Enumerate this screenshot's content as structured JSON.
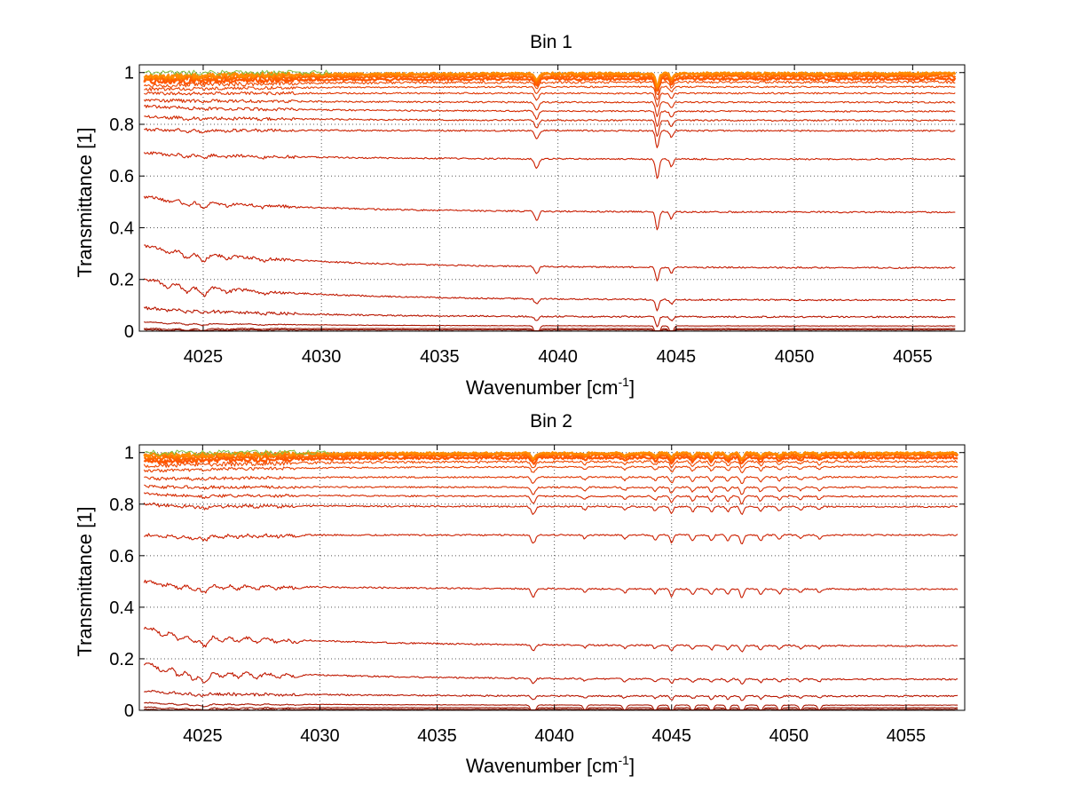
{
  "chart_data": [
    {
      "type": "line",
      "title": "Bin 1",
      "xlabel": "Wavenumber [cm",
      "xlabel_sup": "-1",
      "xlabel_end": "]",
      "ylabel": "Transmittance [1]",
      "xlim": [
        4022.3,
        4057.2
      ],
      "ylim": [
        0,
        1.03
      ],
      "xticks": [
        4025,
        4030,
        4035,
        4040,
        4045,
        4050,
        4055
      ],
      "yticks": [
        0,
        0.2,
        0.4,
        0.6,
        0.8,
        1
      ],
      "ytick_labels": [
        "0",
        "0.2",
        "0.4",
        "0.6",
        "0.8",
        "1"
      ],
      "grid": true,
      "x_start": 4022.5,
      "x_end": 4056.8,
      "series": [
        {
          "level": 0.997,
          "start": 0.985,
          "color": "#ff8c00"
        },
        {
          "level": 0.993,
          "start": 0.98,
          "color": "#ff7400"
        },
        {
          "level": 0.985,
          "start": 0.975,
          "color": "#ff6400"
        },
        {
          "level": 0.975,
          "start": 0.965,
          "color": "#ff5500"
        },
        {
          "level": 0.963,
          "start": 0.95,
          "color": "#f04a00"
        },
        {
          "level": 0.945,
          "start": 0.935,
          "color": "#e84000"
        },
        {
          "level": 0.92,
          "start": 0.92,
          "color": "#e03500"
        },
        {
          "level": 0.885,
          "start": 0.895,
          "color": "#d83000"
        },
        {
          "level": 0.85,
          "start": 0.87,
          "color": "#d52a00"
        },
        {
          "level": 0.815,
          "start": 0.83,
          "color": "#d02800"
        },
        {
          "level": 0.775,
          "start": 0.78,
          "color": "#cc2200"
        },
        {
          "level": 0.665,
          "start": 0.69,
          "color": "#cc2000"
        },
        {
          "level": 0.46,
          "start": 0.52,
          "color": "#c81c00"
        },
        {
          "level": 0.245,
          "start": 0.33,
          "color": "#c41a00"
        },
        {
          "level": 0.12,
          "start": 0.2,
          "color": "#c01800"
        },
        {
          "level": 0.055,
          "start": 0.09,
          "color": "#b81600"
        },
        {
          "level": 0.02,
          "start": 0.035,
          "color": "#a81400"
        },
        {
          "level": 0.01,
          "start": 0.01,
          "color": "#951200"
        },
        {
          "level": 0.005,
          "start": 0.005,
          "color": "#801000"
        }
      ],
      "absorption_lines": [
        {
          "x": 4039.1,
          "depth": 0.5,
          "width": 0.12
        },
        {
          "x": 4044.2,
          "depth": 1.0,
          "width": 0.1
        },
        {
          "x": 4044.8,
          "depth": 0.4,
          "width": 0.1
        }
      ],
      "low_x_wiggles": [
        {
          "x": 4023.5,
          "depth": 0.15
        },
        {
          "x": 4024.3,
          "depth": 0.25
        },
        {
          "x": 4025.0,
          "depth": 0.3
        },
        {
          "x": 4026.0,
          "depth": 0.12
        },
        {
          "x": 4027.5,
          "depth": 0.1
        }
      ]
    },
    {
      "type": "line",
      "title": "Bin 2",
      "xlabel": "Wavenumber [cm",
      "xlabel_sup": "-1",
      "xlabel_end": "]",
      "ylabel": "Transmittance [1]",
      "xlim": [
        4022.3,
        4057.5
      ],
      "ylim": [
        0,
        1.03
      ],
      "xticks": [
        4025,
        4030,
        4035,
        4040,
        4045,
        4050,
        4055
      ],
      "yticks": [
        0,
        0.2,
        0.4,
        0.6,
        0.8,
        1
      ],
      "ytick_labels": [
        "0",
        "0.2",
        "0.4",
        "0.6",
        "0.8",
        "1"
      ],
      "grid": true,
      "x_start": 4022.5,
      "x_end": 4057.2,
      "series": [
        {
          "level": 0.998,
          "start": 0.99,
          "color": "#ff8c00"
        },
        {
          "level": 0.995,
          "start": 0.985,
          "color": "#ff7400"
        },
        {
          "level": 0.99,
          "start": 0.975,
          "color": "#ff6400"
        },
        {
          "level": 0.98,
          "start": 0.965,
          "color": "#ff5500"
        },
        {
          "level": 0.965,
          "start": 0.95,
          "color": "#f04a00"
        },
        {
          "level": 0.945,
          "start": 0.93,
          "color": "#e84000"
        },
        {
          "level": 0.905,
          "start": 0.9,
          "color": "#e03500"
        },
        {
          "level": 0.865,
          "start": 0.87,
          "color": "#d83000"
        },
        {
          "level": 0.83,
          "start": 0.84,
          "color": "#d52a00"
        },
        {
          "level": 0.79,
          "start": 0.8,
          "color": "#cc2200"
        },
        {
          "level": 0.68,
          "start": 0.68,
          "color": "#cc2000"
        },
        {
          "level": 0.47,
          "start": 0.5,
          "color": "#c81c00"
        },
        {
          "level": 0.25,
          "start": 0.32,
          "color": "#c41a00"
        },
        {
          "level": 0.12,
          "start": 0.18,
          "color": "#c01800"
        },
        {
          "level": 0.055,
          "start": 0.075,
          "color": "#b81600"
        },
        {
          "level": 0.02,
          "start": 0.03,
          "color": "#a81400"
        },
        {
          "level": 0.01,
          "start": 0.012,
          "color": "#951200"
        },
        {
          "level": 0.004,
          "start": 0.004,
          "color": "#801000"
        }
      ],
      "absorption_lines": [
        {
          "x": 4039.1,
          "depth": 0.45,
          "width": 0.12
        },
        {
          "x": 4041.3,
          "depth": 0.2,
          "width": 0.1
        },
        {
          "x": 4043.0,
          "depth": 0.22,
          "width": 0.1
        },
        {
          "x": 4044.3,
          "depth": 0.25,
          "width": 0.1
        },
        {
          "x": 4045.0,
          "depth": 0.4,
          "width": 0.1
        },
        {
          "x": 4045.9,
          "depth": 0.3,
          "width": 0.1
        },
        {
          "x": 4046.7,
          "depth": 0.32,
          "width": 0.1
        },
        {
          "x": 4047.4,
          "depth": 0.3,
          "width": 0.1
        },
        {
          "x": 4048.0,
          "depth": 0.5,
          "width": 0.1
        },
        {
          "x": 4048.8,
          "depth": 0.3,
          "width": 0.1
        },
        {
          "x": 4049.6,
          "depth": 0.25,
          "width": 0.1
        },
        {
          "x": 4050.5,
          "depth": 0.2,
          "width": 0.1
        },
        {
          "x": 4051.3,
          "depth": 0.2,
          "width": 0.1
        }
      ],
      "low_x_wiggles": [
        {
          "x": 4023.3,
          "depth": 0.2
        },
        {
          "x": 4024.0,
          "depth": 0.3
        },
        {
          "x": 4024.6,
          "depth": 0.35
        },
        {
          "x": 4025.1,
          "depth": 0.45
        },
        {
          "x": 4025.8,
          "depth": 0.2
        },
        {
          "x": 4026.5,
          "depth": 0.2
        },
        {
          "x": 4027.3,
          "depth": 0.18
        },
        {
          "x": 4028.2,
          "depth": 0.15
        },
        {
          "x": 4029.0,
          "depth": 0.12
        }
      ]
    }
  ]
}
